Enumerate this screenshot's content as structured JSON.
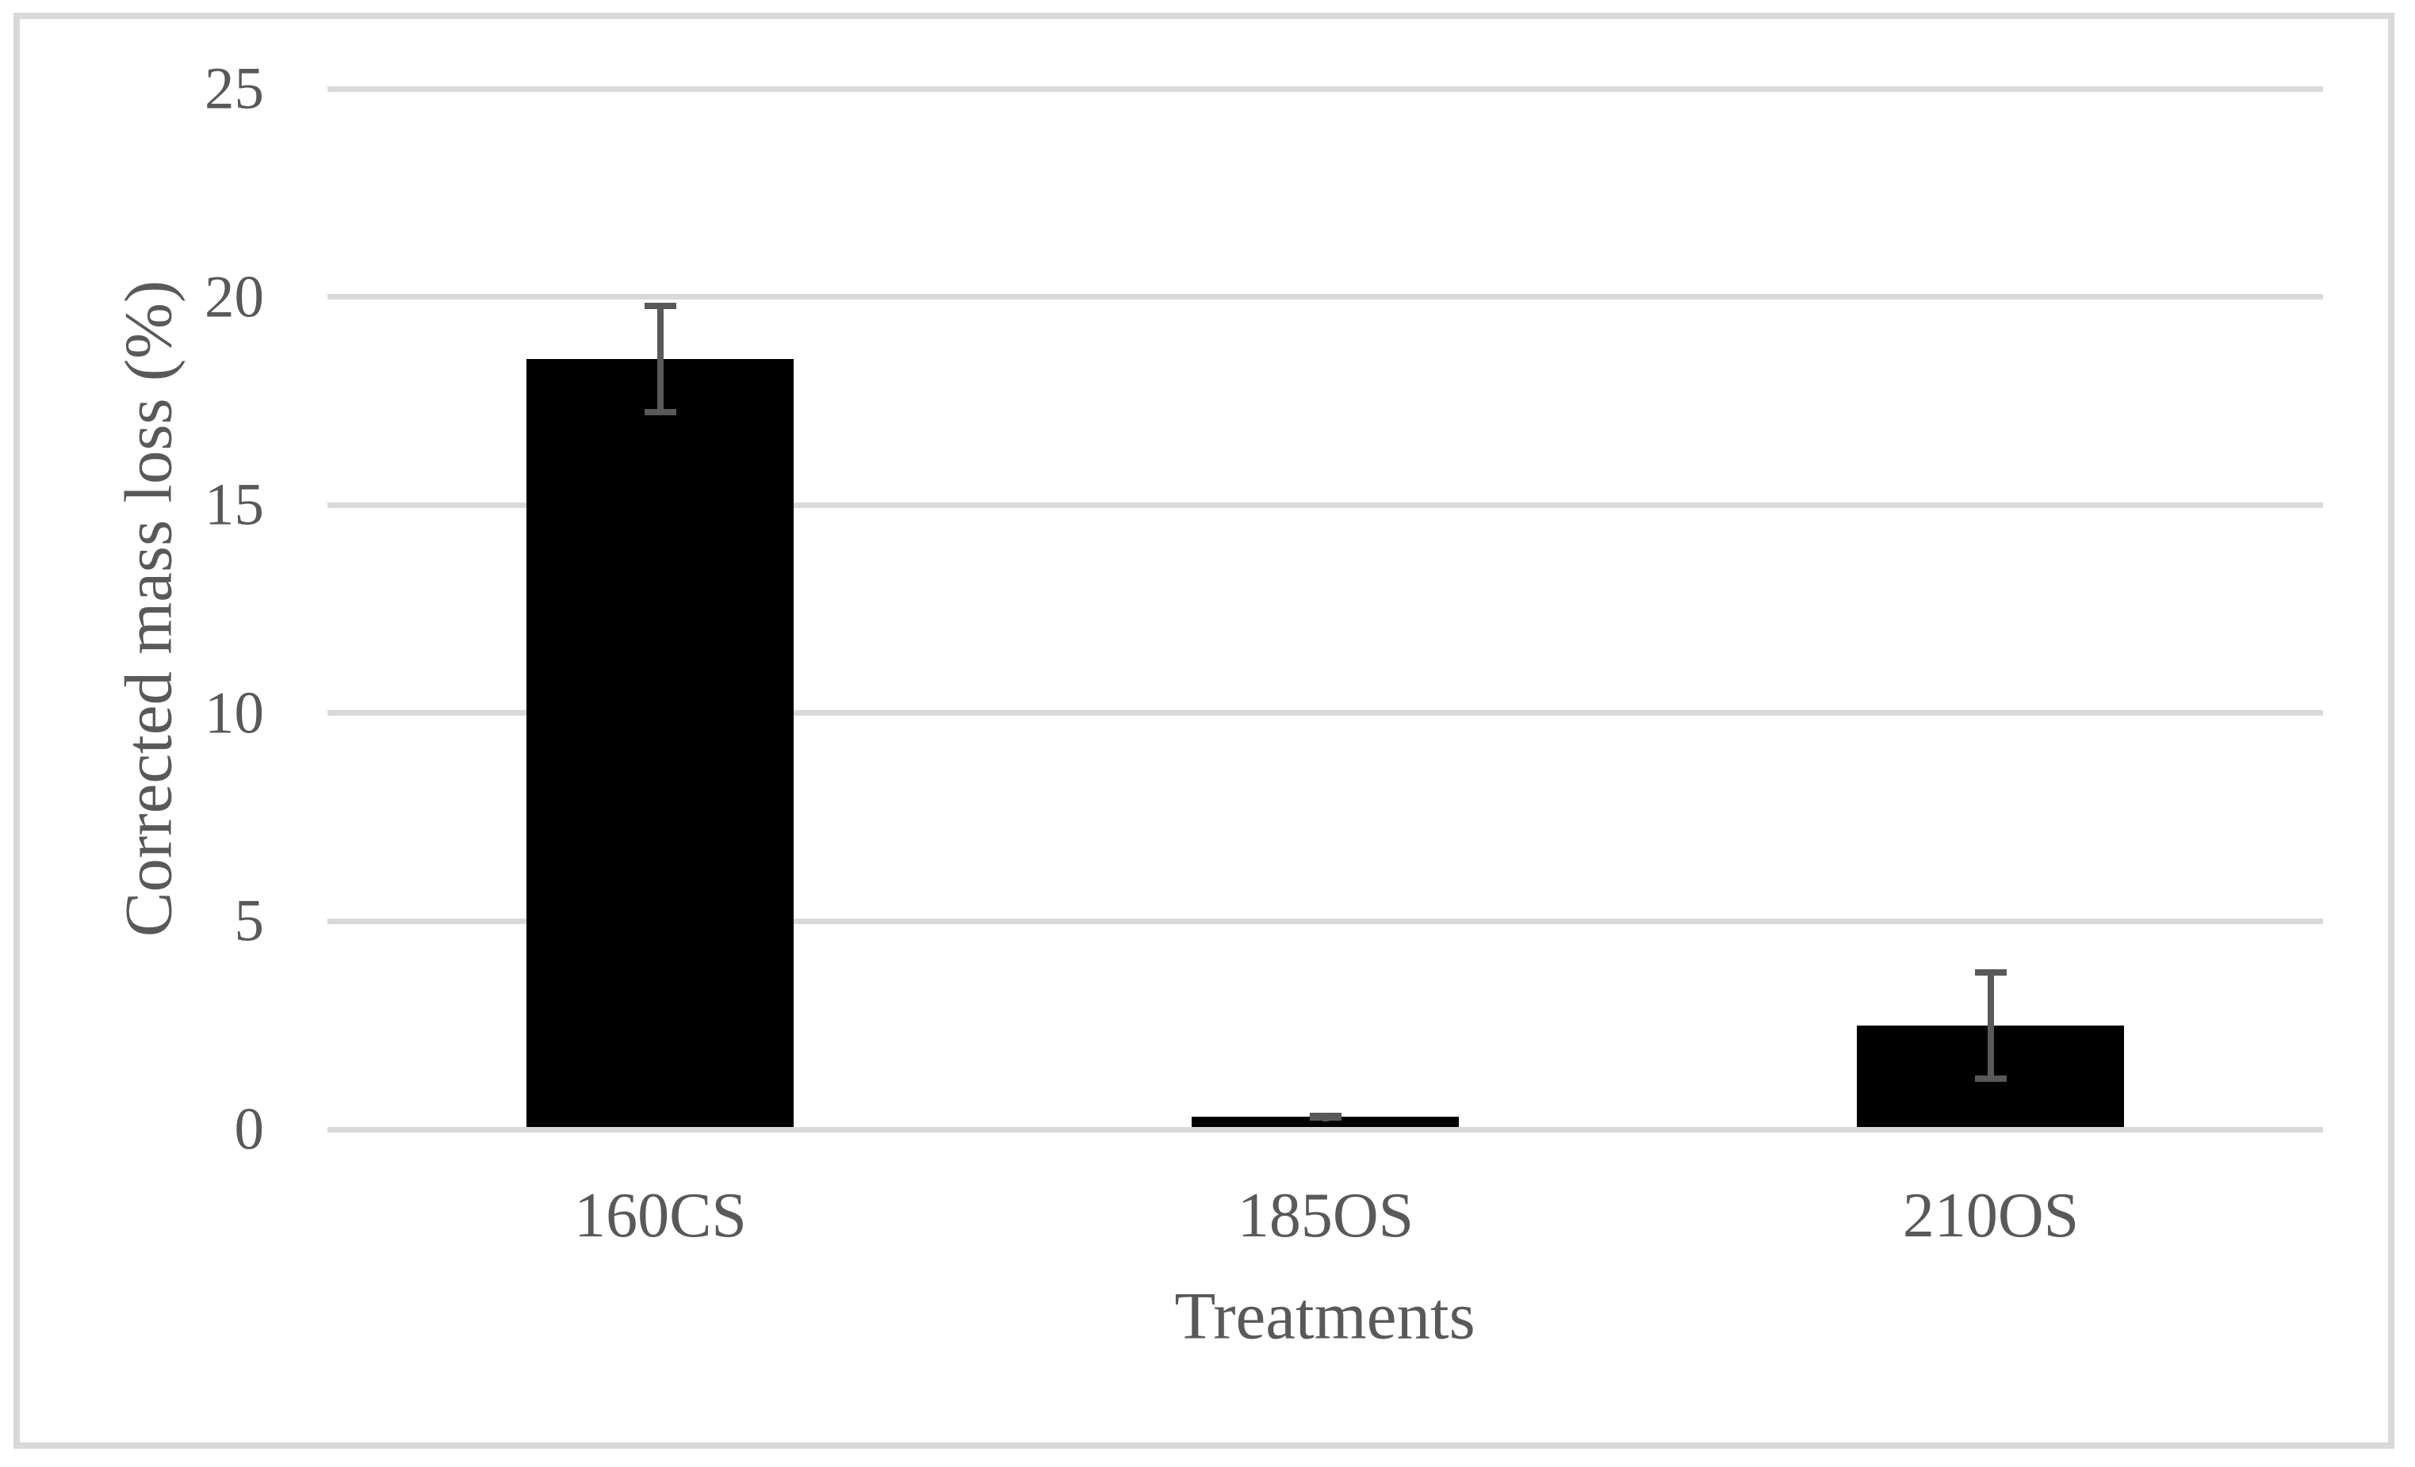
{
  "chart_data": {
    "type": "bar",
    "title": "",
    "categories": [
      "160CS",
      "185OS",
      "210OS"
    ],
    "values": [
      18.5,
      0.3,
      2.5
    ],
    "error_bars": [
      1.35,
      0.1,
      1.35
    ],
    "xlabel": "Treatments",
    "ylabel": "Corrected mass loss (%)",
    "ylim": [
      0,
      25
    ],
    "yticks": [
      0,
      5,
      10,
      15,
      20,
      25
    ],
    "grid": "horizontal-only",
    "legend": "none",
    "colors": {
      "bar": "#000000",
      "error_bar": "#595959",
      "gridline": "#d9d9d9",
      "axis_line": "#d9d9d9",
      "text": "#595959",
      "frame_border": "#d9d9d9",
      "background": "#ffffff"
    }
  }
}
